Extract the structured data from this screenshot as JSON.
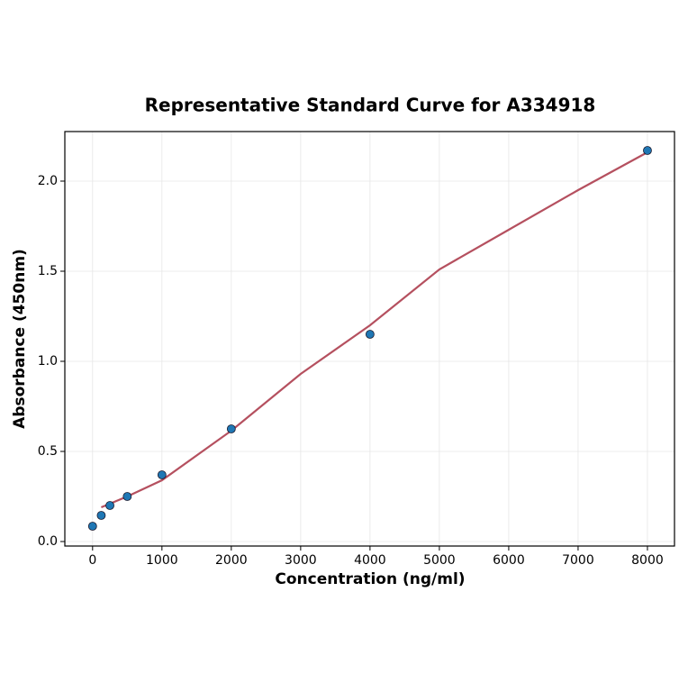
{
  "chart_data": {
    "type": "scatter",
    "title": "Representative Standard Curve for A334918",
    "x_label": "Concentration (ng/ml)",
    "y_label": "Absorbance (450nm)",
    "xlim": [
      -400,
      8390
    ],
    "ylim": [
      -0.025,
      2.275
    ],
    "xticks": [
      0,
      1000,
      2000,
      3000,
      4000,
      5000,
      6000,
      7000,
      8000
    ],
    "yticks": [
      {
        "value": 0,
        "label": "0.0"
      },
      0.5,
      {
        "value": 1,
        "label": "1.0"
      },
      1.5,
      {
        "value": 2,
        "label": "2.0"
      }
    ],
    "grid": true,
    "series": [
      {
        "type": "line",
        "color": "#b5505f",
        "x": [
          125,
          500,
          1000,
          2000,
          3000,
          4000,
          5000,
          6000,
          7000,
          8000
        ],
        "values": [
          0.19,
          0.25,
          0.34,
          0.615,
          0.93,
          1.2,
          1.51,
          1.73,
          1.95,
          2.16
        ]
      },
      {
        "type": "scatter",
        "color": "#1f77b4",
        "x": [
          0,
          125,
          250,
          500,
          1000,
          2000,
          4000,
          8000
        ],
        "values": [
          0.085,
          0.145,
          0.2,
          0.25,
          0.37,
          0.625,
          1.15,
          2.17
        ]
      }
    ]
  }
}
